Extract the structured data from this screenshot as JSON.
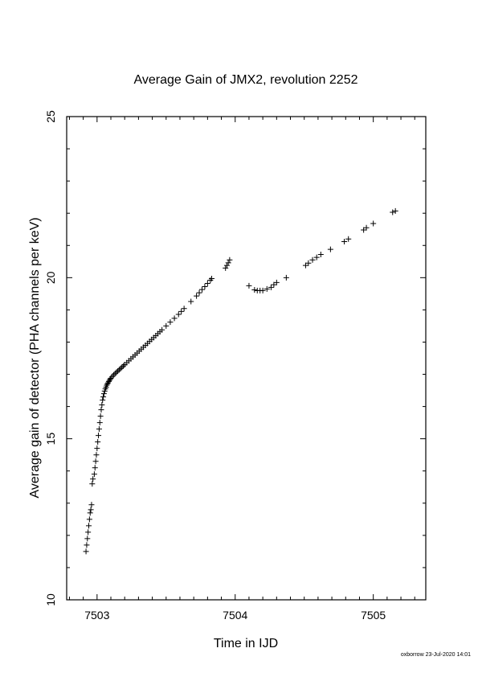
{
  "chart_data": {
    "type": "scatter",
    "title": "Average Gain of JMX2, revolution 2252",
    "xlabel": "Time in IJD",
    "ylabel": "Average gain of detector (PHA channels per keV)",
    "xlim": [
      7502.78,
      7505.38
    ],
    "ylim": [
      10,
      25
    ],
    "x_ticks": [
      7503,
      7504,
      7505
    ],
    "x_tick_labels": [
      "7503",
      "7504",
      "7505"
    ],
    "y_ticks": [
      10,
      15,
      20,
      25
    ],
    "y_tick_labels": [
      "10",
      "15",
      "20",
      "25"
    ],
    "marker": "plus",
    "color": "#000000",
    "series": [
      {
        "x": [
          7502.92,
          7502.925,
          7502.93,
          7502.935,
          7502.94,
          7502.945,
          7502.95,
          7502.955,
          7502.96,
          7502.965,
          7502.97,
          7502.98,
          7502.985,
          7502.99,
          7502.995,
          7503.0,
          7503.005,
          7503.01,
          7503.015,
          7503.02,
          7503.025,
          7503.03,
          7503.035,
          7503.04,
          7503.045,
          7503.05,
          7503.055,
          7503.06,
          7503.065,
          7503.07,
          7503.075,
          7503.08,
          7503.085,
          7503.09,
          7503.095,
          7503.1,
          7503.11,
          7503.12,
          7503.13,
          7503.14,
          7503.15,
          7503.16,
          7503.17,
          7503.18,
          7503.19,
          7503.2,
          7503.215,
          7503.23,
          7503.245,
          7503.26,
          7503.275,
          7503.29,
          7503.305,
          7503.32,
          7503.335,
          7503.35,
          7503.365,
          7503.38,
          7503.395,
          7503.41,
          7503.425,
          7503.44,
          7503.455,
          7503.47,
          7503.5,
          7503.53,
          7503.56,
          7503.59,
          7503.61,
          7503.63,
          7503.68,
          7503.72,
          7503.74,
          7503.76,
          7503.78,
          7503.8,
          7503.82,
          7503.83,
          7503.93,
          7503.94,
          7503.95,
          7503.96,
          7504.1,
          7504.14,
          7504.16,
          7504.18,
          7504.2,
          7504.23,
          7504.26,
          7504.28,
          7504.3,
          7504.37,
          7504.51,
          7504.53,
          7504.56,
          7504.59,
          7504.62,
          7504.69,
          7504.79,
          7504.82,
          7504.93,
          7504.95,
          7505.0,
          7505.14,
          7505.16
        ],
        "y": [
          11.5,
          11.7,
          11.9,
          12.1,
          12.3,
          12.5,
          12.7,
          12.8,
          12.95,
          13.6,
          13.75,
          13.9,
          14.1,
          14.3,
          14.5,
          14.7,
          14.9,
          15.1,
          15.3,
          15.5,
          15.7,
          15.9,
          16.05,
          16.2,
          16.3,
          16.4,
          16.48,
          16.55,
          16.6,
          16.66,
          16.7,
          16.74,
          16.78,
          16.81,
          16.85,
          16.88,
          16.93,
          16.98,
          17.02,
          17.06,
          17.1,
          17.14,
          17.18,
          17.22,
          17.26,
          17.3,
          17.36,
          17.42,
          17.48,
          17.54,
          17.6,
          17.66,
          17.72,
          17.78,
          17.84,
          17.9,
          17.96,
          18.02,
          18.08,
          18.14,
          18.2,
          18.26,
          18.32,
          18.38,
          18.5,
          18.62,
          18.74,
          18.86,
          18.95,
          19.04,
          19.26,
          19.43,
          19.53,
          19.63,
          19.72,
          19.82,
          19.92,
          19.97,
          20.3,
          20.38,
          20.46,
          20.55,
          19.75,
          19.62,
          19.6,
          19.6,
          19.6,
          19.65,
          19.7,
          19.78,
          19.85,
          20.0,
          20.38,
          20.45,
          20.55,
          20.63,
          20.72,
          20.88,
          21.12,
          21.2,
          21.48,
          21.55,
          21.68,
          22.03,
          22.07
        ]
      }
    ]
  },
  "footer": "oxborrow 23-Jul-2020 14:01"
}
